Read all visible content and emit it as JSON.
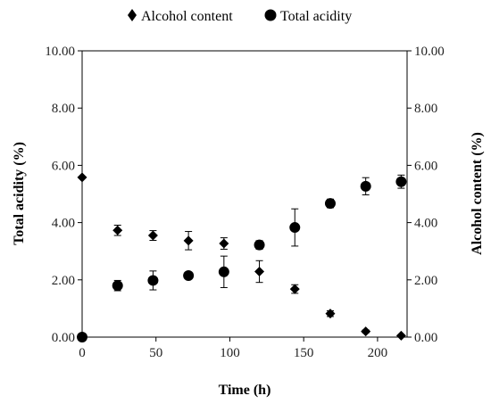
{
  "chart_data": {
    "type": "scatter",
    "title": "",
    "xlabel": "Time (h)",
    "ylabel_left": "Total acidity (%)",
    "ylabel_right": "Alcohol content (%)",
    "xlim": [
      0,
      220
    ],
    "ylim": [
      0,
      10
    ],
    "x_ticks": [
      "0",
      "50",
      "100",
      "150",
      "200"
    ],
    "y_ticks": [
      "0.00",
      "2.00",
      "4.00",
      "6.00",
      "8.00",
      "10.00"
    ],
    "legend_position": "top",
    "grid": false,
    "series": [
      {
        "name": "Alcohol content",
        "marker": "diamond",
        "axis": "right",
        "points": [
          {
            "x": 0,
            "y": 5.58,
            "err": 0
          },
          {
            "x": 24,
            "y": 3.73,
            "err": 0.18
          },
          {
            "x": 48,
            "y": 3.55,
            "err": 0.17
          },
          {
            "x": 72,
            "y": 3.37,
            "err": 0.32
          },
          {
            "x": 96,
            "y": 3.27,
            "err": 0.2
          },
          {
            "x": 120,
            "y": 2.29,
            "err": 0.38
          },
          {
            "x": 144,
            "y": 1.68,
            "err": 0.15
          },
          {
            "x": 168,
            "y": 0.82,
            "err": 0.1
          },
          {
            "x": 192,
            "y": 0.2,
            "err": 0.05
          },
          {
            "x": 216,
            "y": 0.05,
            "err": 0
          }
        ]
      },
      {
        "name": "Total acidity",
        "marker": "circle",
        "axis": "left",
        "points": [
          {
            "x": 0,
            "y": 0.0,
            "err": 0
          },
          {
            "x": 24,
            "y": 1.8,
            "err": 0.18
          },
          {
            "x": 48,
            "y": 1.98,
            "err": 0.33
          },
          {
            "x": 72,
            "y": 2.15,
            "err": 0.1
          },
          {
            "x": 96,
            "y": 2.28,
            "err": 0.55
          },
          {
            "x": 120,
            "y": 3.22,
            "err": 0.15
          },
          {
            "x": 144,
            "y": 3.83,
            "err": 0.65
          },
          {
            "x": 168,
            "y": 4.67,
            "err": 0.15
          },
          {
            "x": 192,
            "y": 5.27,
            "err": 0.3
          },
          {
            "x": 216,
            "y": 5.43,
            "err": 0.23
          }
        ]
      }
    ],
    "colors": {
      "marker": "#000000",
      "axis": "#000000"
    }
  }
}
